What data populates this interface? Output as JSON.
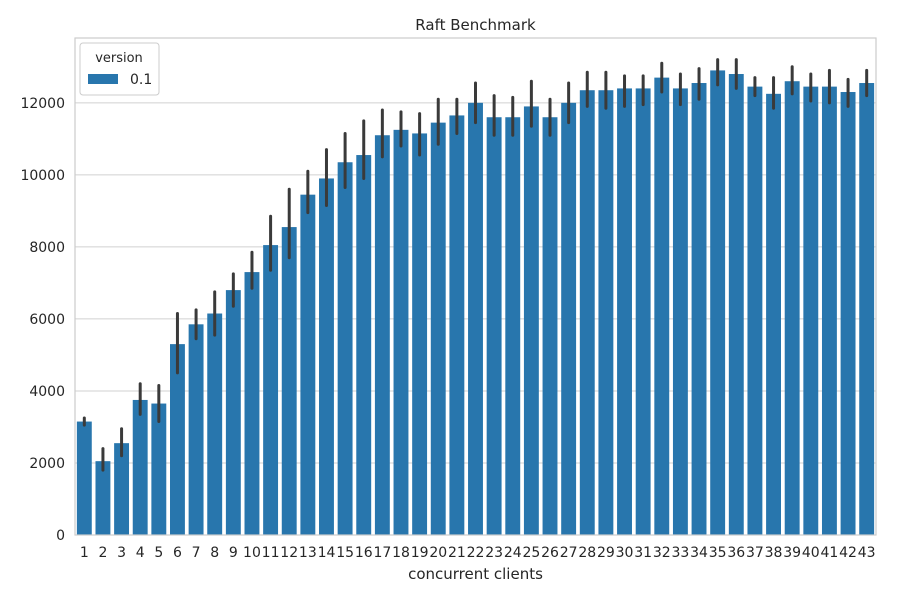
{
  "chart_data": {
    "type": "bar",
    "title": "Raft Benchmark",
    "xlabel": "concurrent clients",
    "ylabel": "",
    "ylim": [
      0,
      13800
    ],
    "yticks": [
      0,
      2000,
      4000,
      6000,
      8000,
      10000,
      12000
    ],
    "grid": true,
    "legend": {
      "title": "version",
      "position": "top-left"
    },
    "colors": {
      "bar": "#2876ad",
      "error": "#3a3a3a",
      "grid": "#d0d0d0",
      "frame": "#cccccc"
    },
    "categories": [
      "1",
      "2",
      "3",
      "4",
      "5",
      "6",
      "7",
      "8",
      "9",
      "10",
      "11",
      "12",
      "13",
      "14",
      "15",
      "16",
      "17",
      "18",
      "19",
      "20",
      "21",
      "22",
      "23",
      "24",
      "25",
      "26",
      "27",
      "28",
      "29",
      "30",
      "31",
      "32",
      "33",
      "34",
      "35",
      "36",
      "37",
      "38",
      "39",
      "40",
      "41",
      "42",
      "43"
    ],
    "series": [
      {
        "name": "0.1",
        "values": [
          3150,
          2050,
          2550,
          3750,
          3650,
          5300,
          5850,
          6150,
          6800,
          7300,
          8050,
          8550,
          9450,
          9900,
          10350,
          10550,
          11100,
          11250,
          11150,
          11450,
          11650,
          12000,
          11600,
          11600,
          11900,
          11600,
          12000,
          12350,
          12350,
          12400,
          12400,
          12700,
          12400,
          12550,
          12900,
          12800,
          12450,
          12250,
          12600,
          12450,
          12450,
          12300,
          12550
        ],
        "err_low": [
          3050,
          1800,
          2200,
          3350,
          3150,
          4500,
          5450,
          5550,
          6350,
          6850,
          7350,
          7700,
          8950,
          9150,
          9650,
          9900,
          10500,
          10800,
          10550,
          10850,
          11150,
          11450,
          11100,
          11100,
          11350,
          11100,
          11450,
          11900,
          11850,
          11900,
          11950,
          12300,
          11950,
          12100,
          12500,
          12400,
          12200,
          11850,
          12250,
          12050,
          12000,
          11900,
          12200
        ],
        "err_high": [
          3250,
          2400,
          2950,
          4200,
          4150,
          6150,
          6250,
          6750,
          7250,
          7850,
          8850,
          9600,
          10100,
          10700,
          11150,
          11500,
          11800,
          11750,
          11700,
          12100,
          12100,
          12550,
          12200,
          12150,
          12600,
          12100,
          12550,
          12850,
          12850,
          12750,
          12750,
          13100,
          12800,
          12950,
          13200,
          13200,
          12700,
          12700,
          13000,
          12800,
          12900,
          12650,
          12900
        ]
      }
    ]
  }
}
